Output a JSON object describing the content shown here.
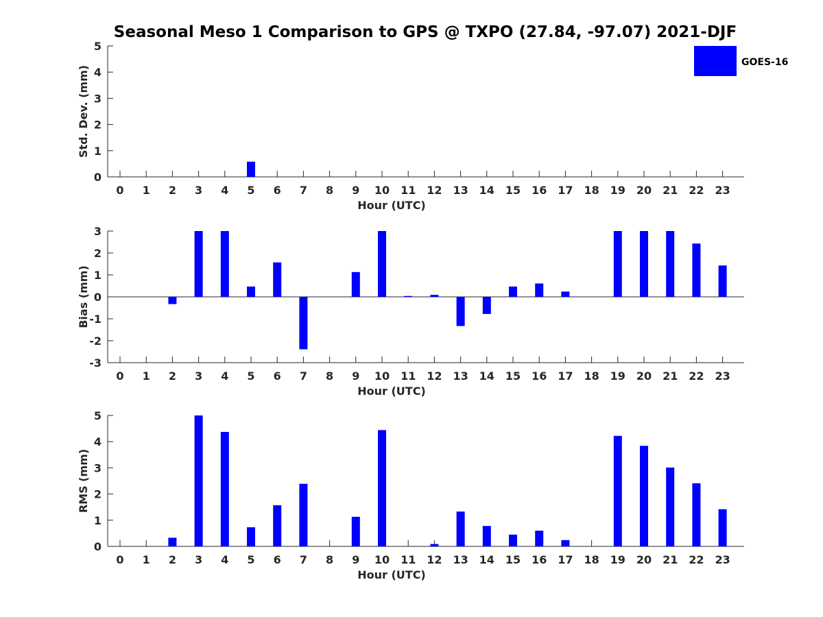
{
  "title": "Seasonal Meso 1 Comparison to GPS @ TXPO (27.84, -97.07) 2021-DJF",
  "legend": {
    "label": "GOES-16",
    "color": "#0000ff",
    "placement": "top-right"
  },
  "chart_data": [
    {
      "type": "bar",
      "xlabel": "Hour (UTC)",
      "ylabel": "Std. Dev. (mm)",
      "ylim": [
        0,
        5
      ],
      "yticks": [
        0,
        1,
        2,
        3,
        4,
        5
      ],
      "categories": [
        "0",
        "1",
        "2",
        "3",
        "4",
        "5",
        "6",
        "7",
        "8",
        "9",
        "10",
        "11",
        "12",
        "13",
        "14",
        "15",
        "16",
        "17",
        "18",
        "19",
        "20",
        "21",
        "22",
        "23"
      ],
      "series": [
        {
          "name": "GOES-16",
          "values": [
            0,
            0,
            0,
            0,
            0,
            0.58,
            0,
            0,
            0,
            0,
            0,
            0,
            0,
            0,
            0,
            0,
            0,
            0,
            0,
            0,
            0,
            0,
            0,
            0
          ]
        }
      ]
    },
    {
      "type": "bar",
      "xlabel": "Hour (UTC)",
      "ylabel": "Bias (mm)",
      "ylim": [
        -3,
        3
      ],
      "yticks": [
        -3,
        -2,
        -1,
        0,
        1,
        2,
        3
      ],
      "categories": [
        "0",
        "1",
        "2",
        "3",
        "4",
        "5",
        "6",
        "7",
        "8",
        "9",
        "10",
        "11",
        "12",
        "13",
        "14",
        "15",
        "16",
        "17",
        "18",
        "19",
        "20",
        "21",
        "22",
        "23"
      ],
      "series": [
        {
          "name": "GOES-16",
          "values": [
            0,
            0,
            -0.33,
            3,
            3,
            0.47,
            1.57,
            -2.39,
            0,
            1.13,
            3,
            0.04,
            0.09,
            -1.33,
            -0.78,
            0.47,
            0.61,
            0.24,
            0,
            3,
            3,
            3,
            2.43,
            1.43
          ]
        }
      ]
    },
    {
      "type": "bar",
      "xlabel": "Hour (UTC)",
      "ylabel": "RMS (mm)",
      "ylim": [
        0,
        5
      ],
      "yticks": [
        0,
        1,
        2,
        3,
        4,
        5
      ],
      "categories": [
        "0",
        "1",
        "2",
        "3",
        "4",
        "5",
        "6",
        "7",
        "8",
        "9",
        "10",
        "11",
        "12",
        "13",
        "14",
        "15",
        "16",
        "17",
        "18",
        "19",
        "20",
        "21",
        "22",
        "23"
      ],
      "series": [
        {
          "name": "GOES-16",
          "values": [
            0,
            0,
            0.33,
            5,
            4.37,
            0.73,
            1.57,
            2.39,
            0,
            1.13,
            4.44,
            0,
            0.09,
            1.33,
            0.78,
            0.45,
            0.6,
            0.24,
            0,
            4.22,
            3.84,
            3.01,
            2.41,
            1.42
          ]
        }
      ]
    }
  ]
}
